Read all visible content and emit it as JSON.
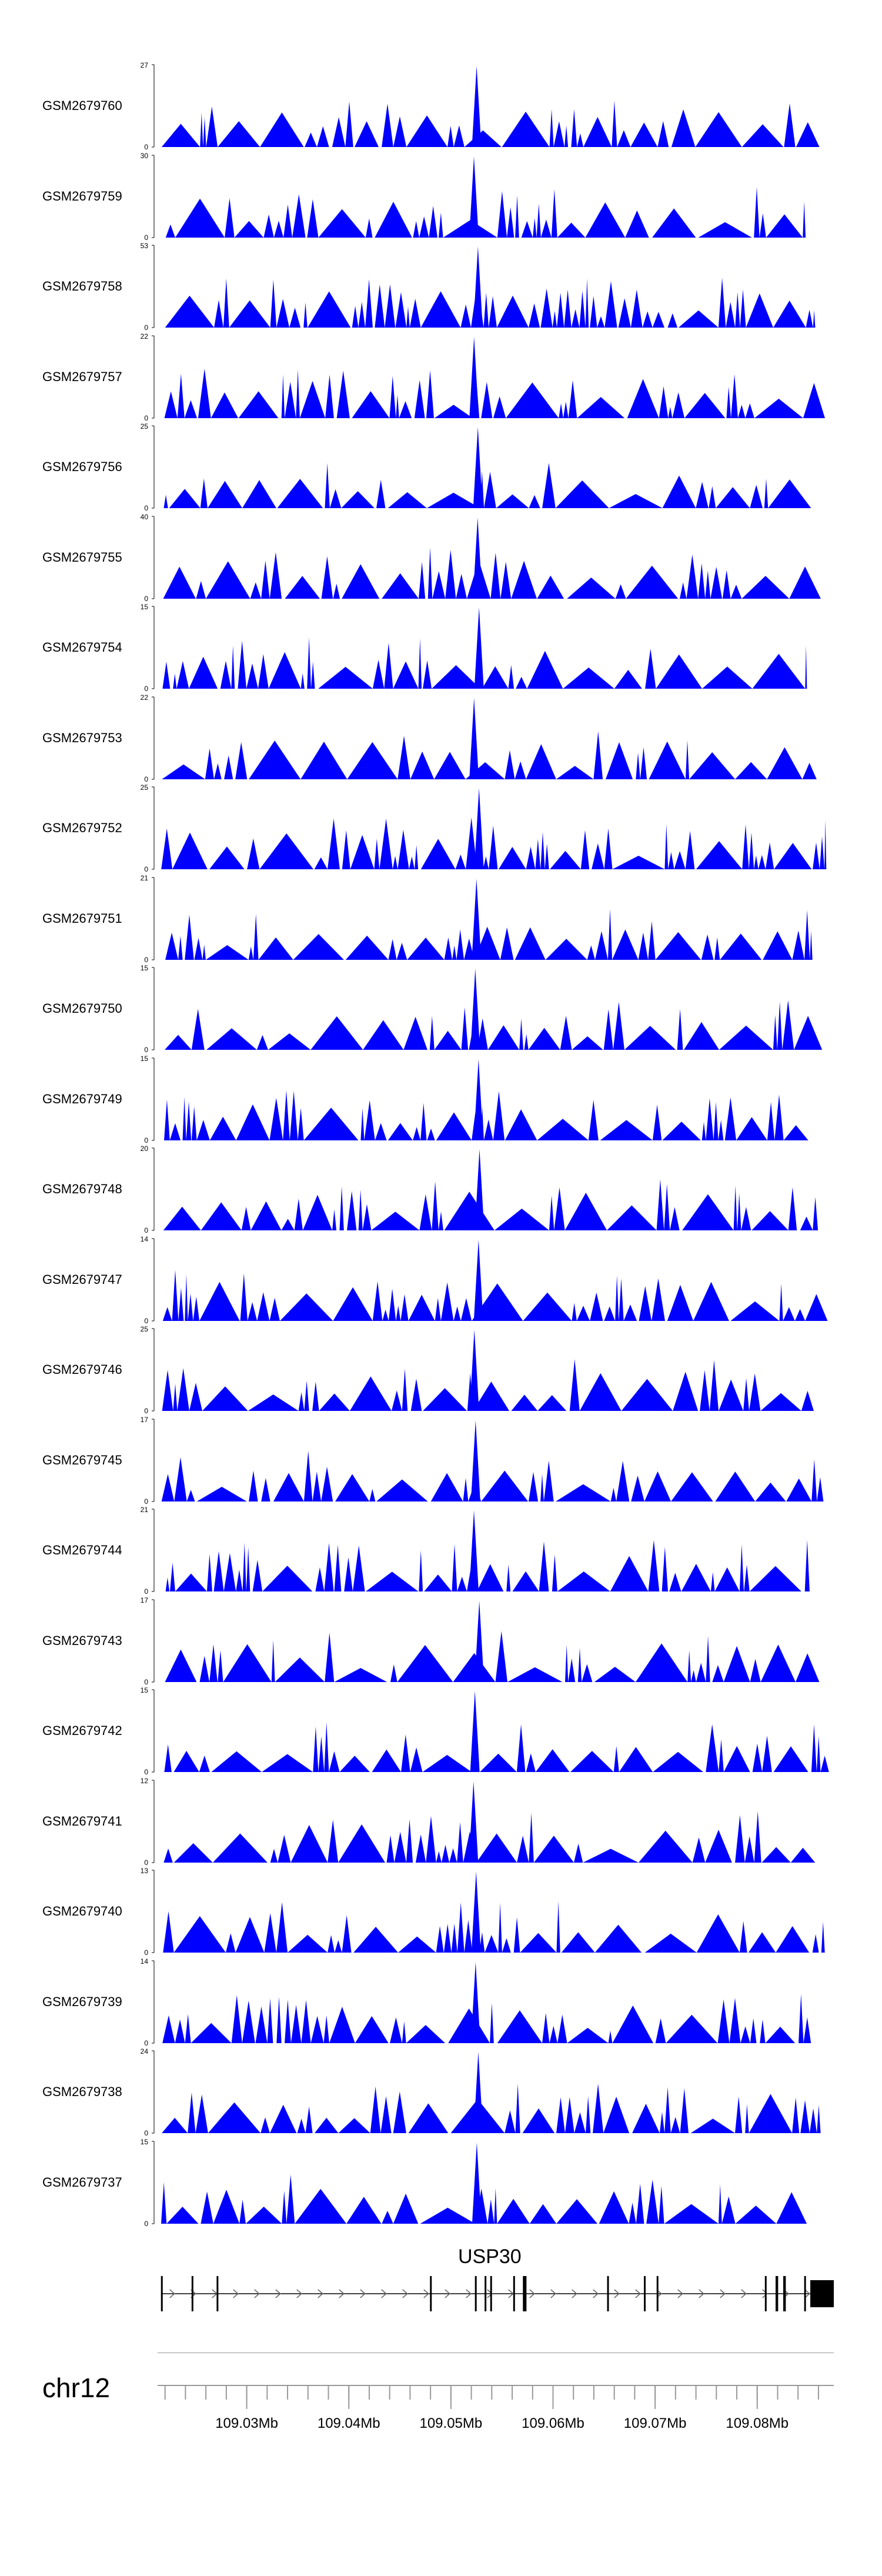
{
  "chart_data": {
    "type": "area",
    "title": "",
    "xlabel": "",
    "ylabel": "",
    "track_color": "#0000ff",
    "x_range": [
      109.0215,
      109.0875
    ],
    "tracks": [
      {
        "name": "GSM2679760",
        "ymax": 27,
        "ymin_label": "0"
      },
      {
        "name": "GSM2679759",
        "ymax": 30,
        "ymin_label": "0"
      },
      {
        "name": "GSM2679758",
        "ymax": 53,
        "ymin_label": "0"
      },
      {
        "name": "GSM2679757",
        "ymax": 22,
        "ymin_label": "0"
      },
      {
        "name": "GSM2679756",
        "ymax": 25,
        "ymin_label": "0"
      },
      {
        "name": "GSM2679755",
        "ymax": 40,
        "ymin_label": "0"
      },
      {
        "name": "GSM2679754",
        "ymax": 15,
        "ymin_label": "0"
      },
      {
        "name": "GSM2679753",
        "ymax": 22,
        "ymin_label": "0"
      },
      {
        "name": "GSM2679752",
        "ymax": 25,
        "ymin_label": "0"
      },
      {
        "name": "GSM2679751",
        "ymax": 21,
        "ymin_label": "0"
      },
      {
        "name": "GSM2679750",
        "ymax": 15,
        "ymin_label": "0"
      },
      {
        "name": "GSM2679749",
        "ymax": 15,
        "ymin_label": "0"
      },
      {
        "name": "GSM2679748",
        "ymax": 20,
        "ymin_label": "0"
      },
      {
        "name": "GSM2679747",
        "ymax": 14,
        "ymin_label": "0"
      },
      {
        "name": "GSM2679746",
        "ymax": 25,
        "ymin_label": "0"
      },
      {
        "name": "GSM2679745",
        "ymax": 17,
        "ymin_label": "0"
      },
      {
        "name": "GSM2679744",
        "ymax": 21,
        "ymin_label": "0"
      },
      {
        "name": "GSM2679743",
        "ymax": 17,
        "ymin_label": "0"
      },
      {
        "name": "GSM2679742",
        "ymax": 15,
        "ymin_label": "0"
      },
      {
        "name": "GSM2679741",
        "ymax": 12,
        "ymin_label": "0"
      },
      {
        "name": "GSM2679740",
        "ymax": 13,
        "ymin_label": "0"
      },
      {
        "name": "GSM2679739",
        "ymax": 14,
        "ymin_label": "0"
      },
      {
        "name": "GSM2679738",
        "ymax": 24,
        "ymin_label": "0"
      },
      {
        "name": "GSM2679737",
        "ymax": 15,
        "ymin_label": "0"
      }
    ],
    "gene": {
      "name": "USP30",
      "strand": "+",
      "start": 109.0216,
      "end": 109.0875,
      "exons": [
        [
          109.0216,
          109.02165
        ],
        [
          109.0246,
          109.02475
        ],
        [
          109.02705,
          109.0272
        ],
        [
          109.04795,
          109.0481
        ],
        [
          109.05235,
          109.0525
        ],
        [
          109.0533,
          109.05345
        ],
        [
          109.05385,
          109.054
        ],
        [
          109.0561,
          109.05625
        ],
        [
          109.05705,
          109.0574
        ],
        [
          109.0653,
          109.06545
        ],
        [
          109.0689,
          109.06905
        ],
        [
          109.07015,
          109.0703
        ],
        [
          109.08075,
          109.0809
        ],
        [
          109.0818,
          109.08205
        ],
        [
          109.08255,
          109.0828
        ],
        [
          109.0846,
          109.08475
        ],
        [
          109.0852,
          109.0875
        ]
      ]
    },
    "axis": {
      "chromosome": "chr12",
      "tick_labels": [
        "109.03Mb",
        "109.04Mb",
        "109.05Mb",
        "109.06Mb",
        "109.07Mb",
        "109.08Mb"
      ],
      "major_ticks": [
        109.03,
        109.04,
        109.05,
        109.06,
        109.07,
        109.08
      ],
      "minor_tick_step": 0.002
    }
  }
}
